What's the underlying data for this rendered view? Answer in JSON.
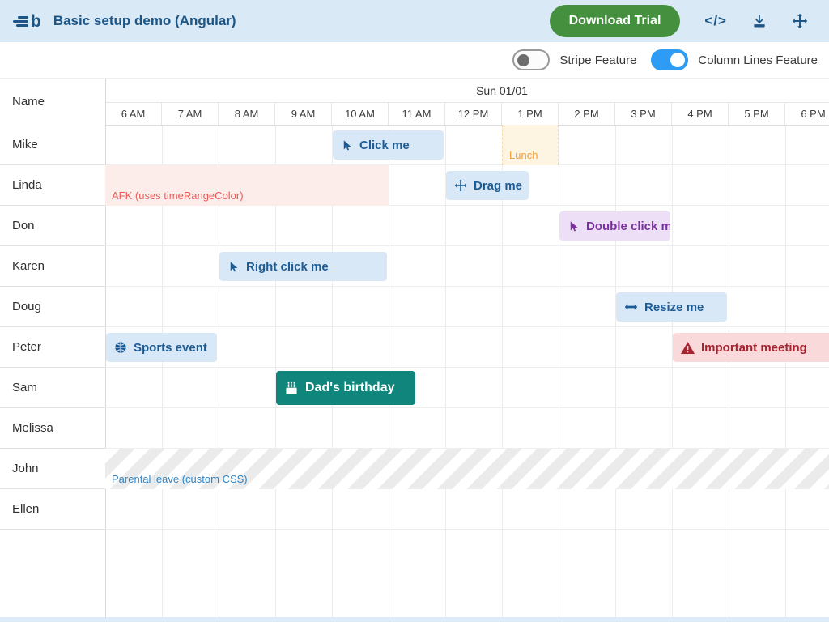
{
  "topbar": {
    "title": "Basic setup demo (Angular)",
    "download_button": "Download Trial",
    "icons": [
      "code-icon",
      "download-icon",
      "move-icon"
    ]
  },
  "featurebar": {
    "toggles": [
      {
        "label": "Stripe Feature",
        "on": false
      },
      {
        "label": "Column Lines Feature",
        "on": true
      }
    ]
  },
  "scheduler": {
    "name_header": "Name",
    "day_label": "Sun 01/01",
    "hours": [
      "6 AM",
      "7 AM",
      "8 AM",
      "9 AM",
      "10 AM",
      "11 AM",
      "12 PM",
      "1 PM",
      "2 PM",
      "3 PM",
      "4 PM",
      "5 PM",
      "6 PM"
    ],
    "resources": [
      "Mike",
      "Linda",
      "Don",
      "Karen",
      "Doug",
      "Peter",
      "Sam",
      "Melissa",
      "John",
      "Ellen"
    ],
    "events": [
      {
        "resource": "Mike",
        "row": 0,
        "label": "Click me",
        "icon": "mouse-pointer-icon",
        "type": "blue",
        "start_hour": "10 AM",
        "start": 4,
        "duration": 2
      },
      {
        "resource": "Linda",
        "row": 1,
        "label": "Drag me",
        "icon": "move-icon",
        "type": "blue",
        "start_hour": "12 PM",
        "start": 6,
        "duration": 1.5
      },
      {
        "resource": "Don",
        "row": 2,
        "label": "Double click me",
        "icon": "mouse-pointer-icon",
        "type": "purple",
        "start_hour": "2 PM",
        "start": 8,
        "duration": 2
      },
      {
        "resource": "Karen",
        "row": 3,
        "label": "Right click me",
        "icon": "mouse-pointer-icon",
        "type": "blue",
        "start_hour": "8 AM",
        "start": 2,
        "duration": 3
      },
      {
        "resource": "Doug",
        "row": 4,
        "label": "Resize me",
        "icon": "resize-icon",
        "type": "blue",
        "start_hour": "3 PM",
        "start": 9,
        "duration": 2
      },
      {
        "resource": "Peter",
        "row": 5,
        "label": "Sports event",
        "icon": "basketball-icon",
        "type": "blue",
        "start_hour": "6 AM",
        "start": 0,
        "duration": 2
      },
      {
        "resource": "Peter",
        "row": 5,
        "label": "Important meeting",
        "icon": "warning-icon",
        "type": "red",
        "start_hour": "4 PM",
        "start": 10,
        "duration": 3
      },
      {
        "resource": "Sam",
        "row": 6,
        "label": "Dad's birthday",
        "icon": "cake-icon",
        "type": "teal",
        "start_hour": "9 AM",
        "start": 3,
        "duration": 2.5
      }
    ],
    "time_ranges": [
      {
        "resource": "Mike",
        "row": 0,
        "label": "Lunch",
        "type": "lunch",
        "start": 7,
        "duration": 1
      },
      {
        "resource": "Linda",
        "row": 1,
        "label": "AFK (uses timeRangeColor)",
        "type": "afk",
        "start": 0,
        "duration": 5
      },
      {
        "resource": "John",
        "row": 8,
        "label": "Parental leave (custom CSS)",
        "type": "stripes",
        "start": 0,
        "duration": 13
      }
    ]
  },
  "colors": {
    "topbar_bg": "#d9e9f6",
    "brand_blue": "#1b5687",
    "button_green": "#45903e",
    "toggle_on_blue": "#2e9cf4",
    "event_blue_bg": "#d9e8f7",
    "event_blue_text": "#1d5d96",
    "event_purple_bg": "#ecdff6",
    "event_purple_text": "#7b2fa0",
    "event_red_bg": "#f9d9da",
    "event_red_text": "#a5242f",
    "event_teal_bg": "#0f857b",
    "lunch_bg": "#fdf4e2",
    "lunch_text": "#f0a23c",
    "afk_bg": "#fcecea",
    "afk_text": "#e85b58",
    "stripe_label_text": "#2f86c8"
  }
}
